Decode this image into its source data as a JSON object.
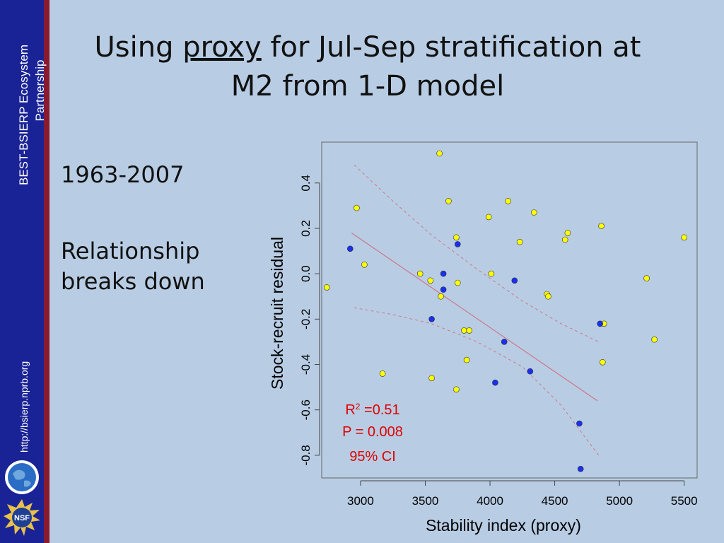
{
  "sidebar": {
    "org_name_line1": "BEST-BSIERP Ecosystem",
    "org_name_line2": "Partnership",
    "url": "http://bsierp.nprb.org",
    "logo1_icon": "globe-logo-icon",
    "logo2_icon": "nsf-logo-icon",
    "logo2_text": "NSF",
    "colors": {
      "sidebar": "#1a2396",
      "stripe": "#8a1a2e"
    }
  },
  "slide": {
    "title_pre": "Using ",
    "title_underlined": "proxy",
    "title_post": " for Jul-Sep stratification at",
    "title_line2": "M2 from 1-D model",
    "years": "1963-2007",
    "note_line1": "Relationship",
    "note_line2": "breaks down",
    "background": "#b8cde4"
  },
  "chart_data": {
    "type": "scatter",
    "xlabel": "Stability index (proxy)",
    "ylabel": "Stock-recruit residual",
    "xlim": [
      2700,
      5600
    ],
    "ylim": [
      -0.9,
      0.58
    ],
    "xticks": [
      3000,
      3500,
      4000,
      4500,
      5000,
      5500
    ],
    "yticks": [
      -0.8,
      -0.6,
      -0.4,
      -0.2,
      0.0,
      0.2,
      0.4
    ],
    "ytick_labels": [
      "-0.8",
      "-0.6",
      "-0.4",
      "-0.2",
      "0.0",
      "0.2",
      "0.4"
    ],
    "colors": {
      "yellow": "#ffff00",
      "blue": "#1a2ff0",
      "fit": "#cc7788",
      "annotation": "#e00000"
    },
    "series": [
      {
        "name": "yellow",
        "points": [
          [
            2740,
            -0.06
          ],
          [
            2970,
            0.29
          ],
          [
            3030,
            0.04
          ],
          [
            3170,
            -0.44
          ],
          [
            3460,
            0.0
          ],
          [
            3540,
            -0.03
          ],
          [
            3550,
            -0.46
          ],
          [
            3610,
            0.53
          ],
          [
            3620,
            -0.1
          ],
          [
            3680,
            0.32
          ],
          [
            3740,
            0.16
          ],
          [
            3740,
            -0.51
          ],
          [
            3750,
            -0.04
          ],
          [
            3800,
            -0.25
          ],
          [
            3820,
            -0.38
          ],
          [
            3840,
            -0.25
          ],
          [
            3990,
            0.25
          ],
          [
            4010,
            0.0
          ],
          [
            4140,
            0.32
          ],
          [
            4230,
            0.14
          ],
          [
            4340,
            0.27
          ],
          [
            4440,
            -0.09
          ],
          [
            4450,
            -0.1
          ],
          [
            4580,
            0.15
          ],
          [
            4600,
            0.18
          ],
          [
            4860,
            0.21
          ],
          [
            4870,
            -0.39
          ],
          [
            4880,
            -0.22
          ],
          [
            5210,
            -0.02
          ],
          [
            5270,
            -0.29
          ],
          [
            5500,
            0.16
          ]
        ]
      },
      {
        "name": "blue",
        "points": [
          [
            2920,
            0.11
          ],
          [
            3550,
            -0.2
          ],
          [
            3640,
            0.0
          ],
          [
            3640,
            -0.07
          ],
          [
            3750,
            0.13
          ],
          [
            4040,
            -0.48
          ],
          [
            4110,
            -0.3
          ],
          [
            4190,
            -0.03
          ],
          [
            4310,
            -0.43
          ],
          [
            4690,
            -0.66
          ],
          [
            4700,
            -0.86
          ],
          [
            4850,
            -0.22
          ]
        ]
      }
    ],
    "fit_line": [
      [
        2930,
        0.18
      ],
      [
        4830,
        -0.56
      ]
    ],
    "ci_upper": [
      [
        2950,
        0.48
      ],
      [
        3250,
        0.32
      ],
      [
        3550,
        0.17
      ],
      [
        3900,
        0.02
      ],
      [
        4250,
        -0.12
      ],
      [
        4550,
        -0.22
      ],
      [
        4840,
        -0.3
      ]
    ],
    "ci_lower": [
      [
        2950,
        -0.15
      ],
      [
        3250,
        -0.18
      ],
      [
        3550,
        -0.22
      ],
      [
        3900,
        -0.3
      ],
      [
        4250,
        -0.41
      ],
      [
        4550,
        -0.58
      ],
      [
        4840,
        -0.8
      ]
    ],
    "annotation": {
      "r_squared_label": "R",
      "r_squared_superscript": "2",
      "r_squared_value": " =0.51",
      "p_value": "P = 0.008",
      "ci": "95% CI"
    }
  }
}
